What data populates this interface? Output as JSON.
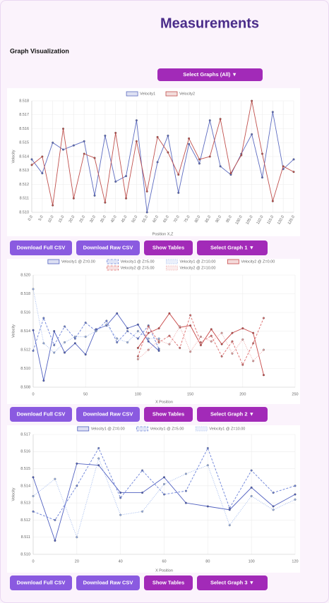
{
  "header": {
    "title": "Measurements",
    "subtitle": "Graph Visualization",
    "select_button": "Select Graphs (All) ▼"
  },
  "chart_data": [
    {
      "type": "line",
      "x_label": "Position X,Z",
      "y_label": "Velocity",
      "grid": true,
      "categories": [
        "0.0",
        "5.0",
        "10.0",
        "15.0",
        "20.0",
        "25.0",
        "30.0",
        "35.0",
        "40.0",
        "45.0",
        "50.0",
        "55.0",
        "60.0",
        "65.0",
        "70.0",
        "75.0",
        "80.0",
        "85.0",
        "90.0",
        "95.0",
        "100.0",
        "105.0",
        "110.0",
        "115.0",
        "120.0",
        "125.0"
      ],
      "ylim": [
        8.51,
        8.518
      ],
      "yticks": [
        {
          "value": 8.51,
          "label": "8.510"
        },
        8.511,
        8.512,
        8.513,
        8.514,
        8.515,
        8.516,
        8.517,
        8.518
      ],
      "series": [
        {
          "name": "Velocity1",
          "color": "#5c6bc0",
          "dash": "solid",
          "values": [
            8.5138,
            8.5128,
            8.515,
            8.5145,
            8.5148,
            8.5151,
            8.5112,
            8.5155,
            8.5122,
            8.5126,
            8.5166,
            8.51,
            8.5136,
            8.5155,
            8.5114,
            8.5149,
            8.5135,
            8.5166,
            8.5133,
            8.5127,
            8.5142,
            8.5156,
            8.5125,
            8.5172,
            8.5131,
            8.5138
          ]
        },
        {
          "name": "Velocity2",
          "color": "#c0504d",
          "dash": "solid",
          "values": [
            8.5134,
            8.514,
            8.5105,
            8.516,
            8.511,
            8.5142,
            8.5139,
            8.5107,
            8.5157,
            8.511,
            8.5151,
            8.5115,
            8.5154,
            8.5143,
            8.5127,
            8.5153,
            8.5138,
            8.514,
            8.5167,
            8.5128,
            8.5141,
            8.518,
            8.5142,
            8.5108,
            8.5133,
            8.5129
          ]
        }
      ]
    },
    {
      "type": "line",
      "x_label": "X Position",
      "y_label": "Velocity",
      "grid": true,
      "xlim": [
        0,
        250
      ],
      "xticks": [
        0,
        50,
        100,
        150,
        200,
        250
      ],
      "ylim": [
        8.508,
        8.52
      ],
      "yticks": [
        8.508,
        {
          "value": 8.51,
          "label": "8.510"
        },
        8.512,
        8.514,
        8.516,
        8.518,
        {
          "value": 8.52,
          "label": "8.520"
        }
      ],
      "series": [
        {
          "name": "Velocity1 @ Z=0.00",
          "color": "#5060c0",
          "dash": "solid",
          "x": [
            0,
            10,
            20,
            30,
            40,
            50,
            60,
            70,
            80,
            90,
            100,
            110,
            120
          ],
          "values": [
            8.5141,
            8.5087,
            8.514,
            8.5117,
            8.5127,
            8.5115,
            8.5142,
            8.5146,
            8.5159,
            8.5143,
            8.5147,
            8.5129,
            8.5119
          ]
        },
        {
          "name": "Velocity1 @ Z=5.00",
          "color": "#6a80d8",
          "dash": "dashed",
          "x": [
            0,
            10,
            20,
            30,
            40,
            50,
            60,
            70,
            80,
            90,
            100,
            110,
            120
          ],
          "values": [
            8.5119,
            8.5154,
            8.5125,
            8.5145,
            8.5132,
            8.5149,
            8.514,
            8.5151,
            8.5128,
            8.514,
            8.5132,
            8.5146,
            8.5121
          ]
        },
        {
          "name": "Velocity1 @ Z=10.00",
          "color": "#9ab4ec",
          "dash": "dotted",
          "x": [
            0,
            10,
            20,
            30,
            40,
            50,
            60,
            70,
            80,
            90,
            100,
            110,
            120
          ],
          "values": [
            8.5185,
            8.5127,
            8.5117,
            8.5128,
            8.5134,
            8.5134,
            8.514,
            8.5147,
            8.5132,
            8.5128,
            8.514,
            8.5132,
            8.5132
          ]
        },
        {
          "name": "Velocity2 @ Z=0.00",
          "color": "#c84848",
          "dash": "solid",
          "x": [
            100,
            110,
            120,
            130,
            140,
            150,
            160,
            170,
            180,
            190,
            200,
            210,
            220
          ],
          "values": [
            8.5122,
            8.5138,
            8.5143,
            8.5159,
            8.5144,
            8.5146,
            8.5125,
            8.5142,
            8.5126,
            8.5138,
            8.5143,
            8.5138,
            8.5093
          ]
        },
        {
          "name": "Velocity2 @ Z=5.00",
          "color": "#dc6a6a",
          "dash": "dashed",
          "x": [
            100,
            110,
            120,
            130,
            140,
            150,
            160,
            170,
            180,
            190,
            200,
            210,
            220
          ],
          "values": [
            8.5113,
            8.5145,
            8.5128,
            8.5135,
            8.5122,
            8.5157,
            8.5128,
            8.5135,
            8.5113,
            8.5129,
            8.5104,
            8.5127,
            8.5154
          ]
        },
        {
          "name": "Velocity2 @ Z=10.00",
          "color": "#eca0a0",
          "dash": "dotted",
          "x": [
            100,
            110,
            120,
            130,
            140,
            150,
            160,
            170,
            180,
            190,
            200,
            210,
            220
          ],
          "values": [
            8.511,
            8.512,
            8.513,
            8.5126,
            8.5145,
            8.5118,
            8.5134,
            8.5129,
            8.5138,
            8.5116,
            8.5131,
            8.5108,
            8.512
          ]
        }
      ]
    },
    {
      "type": "line",
      "x_label": "X Position",
      "y_label": "Velocity",
      "grid": true,
      "xlim": [
        0,
        120
      ],
      "xticks": [
        0,
        20,
        40,
        60,
        80,
        100,
        120
      ],
      "ylim": [
        8.51,
        8.517
      ],
      "yticks": [
        {
          "value": 8.51,
          "label": "8.510"
        },
        8.511,
        8.512,
        8.513,
        8.514,
        8.515,
        8.516,
        8.517
      ],
      "series": [
        {
          "name": "Velocity1 @ Z=0.00",
          "color": "#5060c0",
          "dash": "solid",
          "x": [
            0,
            10,
            20,
            30,
            40,
            50,
            60,
            70,
            80,
            90,
            100,
            110,
            120
          ],
          "values": [
            8.5145,
            8.5108,
            8.5153,
            8.5152,
            8.5136,
            8.5136,
            8.5145,
            8.513,
            8.5128,
            8.5126,
            8.5139,
            8.5128,
            8.5135
          ]
        },
        {
          "name": "Velocity1 @ Z=5.00",
          "color": "#6a80d8",
          "dash": "dashed",
          "x": [
            0,
            10,
            20,
            30,
            40,
            50,
            60,
            70,
            80,
            90,
            100,
            110,
            120
          ],
          "values": [
            8.5125,
            8.512,
            8.514,
            8.5162,
            8.5133,
            8.5149,
            8.5135,
            8.5137,
            8.5162,
            8.5127,
            8.5149,
            8.5136,
            8.514
          ]
        },
        {
          "name": "Velocity1 @ Z=10.00",
          "color": "#9ab4ec",
          "dash": "dotted",
          "x": [
            0,
            10,
            20,
            30,
            40,
            50,
            60,
            70,
            80,
            90,
            100,
            110,
            120
          ],
          "values": [
            8.5134,
            8.5144,
            8.511,
            8.5156,
            8.5123,
            8.5125,
            8.5141,
            8.5147,
            8.5152,
            8.5117,
            8.5134,
            8.5126,
            8.5132
          ]
        }
      ]
    }
  ],
  "controls": [
    {
      "download_full": "Download Full CSV",
      "download_raw": "Download Raw CSV",
      "show_tables": "Show Tables",
      "select_graph": "Select Graph 1 ▼"
    },
    {
      "download_full": "Download Full CSV",
      "download_raw": "Download Raw CSV",
      "show_tables": "Show Tables",
      "select_graph": "Select Graph 2 ▼"
    },
    {
      "download_full": "Download Full CSV",
      "download_raw": "Download Raw CSV",
      "show_tables": "Show Tables",
      "select_graph": "Select Graph 3 ▼"
    }
  ]
}
